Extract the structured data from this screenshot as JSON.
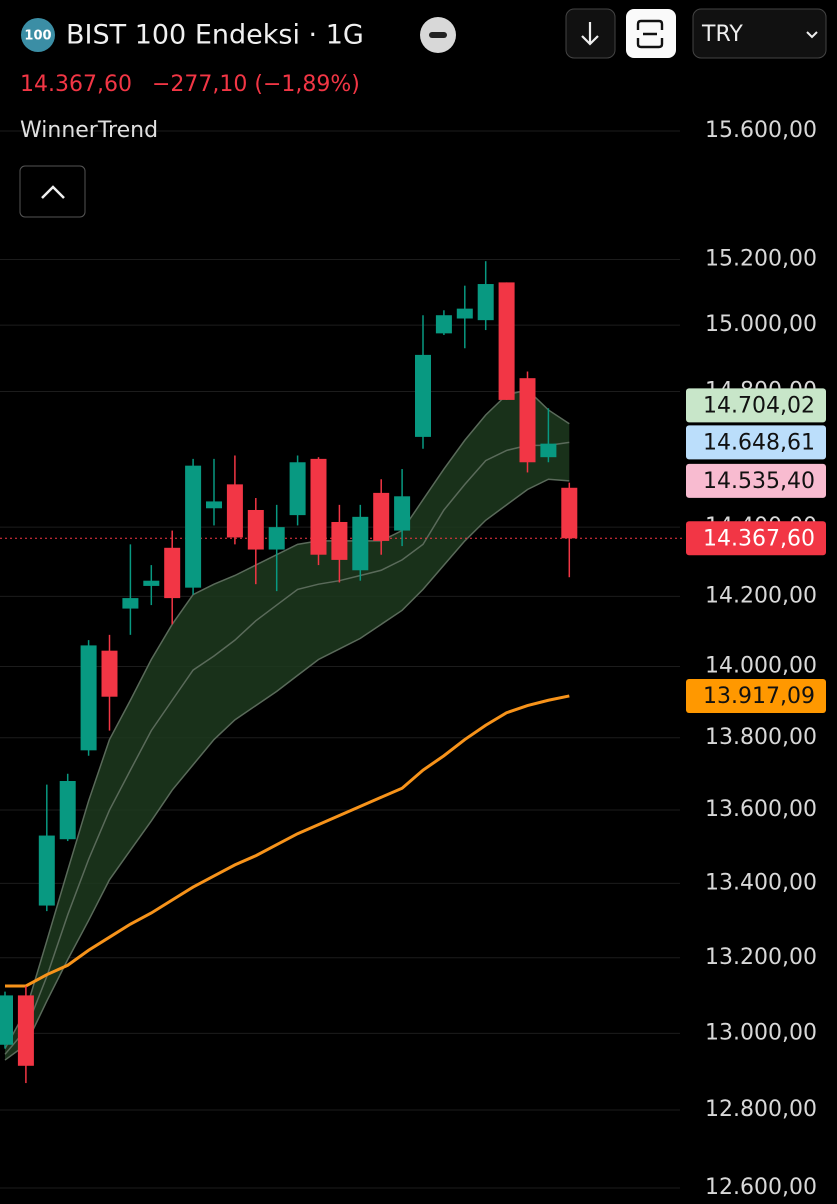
{
  "header": {
    "badge": "100",
    "title": "BIST 100 Endeksi · 1G",
    "last_price": "14.367,60",
    "change": "−277,10 (−1,89%)",
    "indicator": "WinnerTrend",
    "currency": "TRY"
  },
  "chart_data": {
    "type": "candlestick",
    "log_scale": true,
    "grid": true,
    "ylim": [
      12600,
      15600
    ],
    "yticks": [
      {
        "value": 12600,
        "label": "12.600,00"
      },
      {
        "value": 12800,
        "label": "12.800,00"
      },
      {
        "value": 13000,
        "label": "13.000,00"
      },
      {
        "value": 13200,
        "label": "13.200,00"
      },
      {
        "value": 13400,
        "label": "13.400,00"
      },
      {
        "value": 13600,
        "label": "13.600,00"
      },
      {
        "value": 13800,
        "label": "13.800,00"
      },
      {
        "value": 14000,
        "label": "14.000,00"
      },
      {
        "value": 14200,
        "label": "14.200,00"
      },
      {
        "value": 14400,
        "label": "14.400,00"
      },
      {
        "value": 14800,
        "label": "14.800,00"
      },
      {
        "value": 15000,
        "label": "15.000,00"
      },
      {
        "value": 15200,
        "label": "15.200,00"
      },
      {
        "value": 15600,
        "label": "15.600,00"
      }
    ],
    "up_color": "#089981",
    "down_color": "#f23645",
    "open": [
      12970,
      13100,
      13340,
      13520,
      13765,
      14045,
      14165,
      14230,
      14340,
      14225,
      14455,
      14525,
      14450,
      14335,
      14435,
      14600,
      14415,
      14275,
      14500,
      14390,
      14665,
      14975,
      15020,
      15015,
      15130,
      14840,
      14605,
      14515
    ],
    "high": [
      13110,
      13125,
      13670,
      13700,
      14075,
      14090,
      14350,
      14290,
      14390,
      14600,
      14600,
      14610,
      14485,
      14465,
      14610,
      14605,
      14465,
      14465,
      14540,
      14570,
      15030,
      15045,
      15120,
      15195,
      15130,
      14860,
      14750,
      14530
    ],
    "low": [
      12960,
      12870,
      13325,
      13515,
      13750,
      13820,
      14090,
      14175,
      14120,
      14205,
      14405,
      14350,
      14235,
      14215,
      14405,
      14290,
      14240,
      14245,
      14320,
      14345,
      14630,
      14970,
      14930,
      14985,
      14775,
      14560,
      14590,
      14255
    ],
    "close": [
      13100,
      12915,
      13530,
      13680,
      14060,
      13915,
      14195,
      14245,
      14195,
      14580,
      14475,
      14370,
      14335,
      14400,
      14590,
      14320,
      14305,
      14430,
      14360,
      14490,
      14910,
      15030,
      15050,
      15125,
      14775,
      14590,
      14645,
      14367.6
    ],
    "band": {
      "fill": "#1d3a1f",
      "line_color": "#5a6a5a",
      "upper": [
        12960,
        13060,
        13245,
        13435,
        13625,
        13795,
        13905,
        14020,
        14120,
        14205,
        14235,
        14260,
        14290,
        14320,
        14350,
        14360,
        14360,
        14360,
        14360,
        14390,
        14480,
        14570,
        14655,
        14730,
        14790,
        14805,
        14745,
        14704.02
      ],
      "middle": [
        12945,
        13010,
        13150,
        13315,
        13465,
        13600,
        13710,
        13820,
        13905,
        13990,
        14030,
        14075,
        14130,
        14175,
        14220,
        14235,
        14245,
        14260,
        14275,
        14305,
        14350,
        14450,
        14525,
        14595,
        14625,
        14640,
        14640,
        14648.61
      ],
      "lower": [
        12930,
        12970,
        13085,
        13195,
        13300,
        13410,
        13490,
        13570,
        13655,
        13725,
        13795,
        13850,
        13890,
        13930,
        13975,
        14020,
        14050,
        14080,
        14120,
        14160,
        14220,
        14290,
        14360,
        14420,
        14465,
        14510,
        14540,
        14535.4
      ]
    },
    "ma": {
      "color": "#f7931a",
      "values": [
        13125,
        13125,
        13155,
        13180,
        13220,
        13255,
        13290,
        13320,
        13355,
        13390,
        13420,
        13450,
        13475,
        13505,
        13535,
        13560,
        13585,
        13610,
        13635,
        13660,
        13710,
        13750,
        13795,
        13835,
        13870,
        13890,
        13905,
        13917.09
      ]
    },
    "price_tags": [
      {
        "value": 14704.02,
        "label": "14.704,02",
        "color": "#c8e6c9",
        "text_color": "#111111"
      },
      {
        "value": 14648.61,
        "label": "14.648,61",
        "color": "#bbdefb",
        "text_color": "#111111"
      },
      {
        "value": 14535.4,
        "label": "14.535,40",
        "color": "#f8bbd0",
        "text_color": "#111111"
      },
      {
        "value": 14367.6,
        "label": "14.367,60",
        "color": "#f23645",
        "text_color": "#ffffff"
      },
      {
        "value": 13917.09,
        "label": "13.917,09",
        "color": "#ff9800",
        "text_color": "#111111"
      }
    ],
    "current_price_index": 3
  }
}
